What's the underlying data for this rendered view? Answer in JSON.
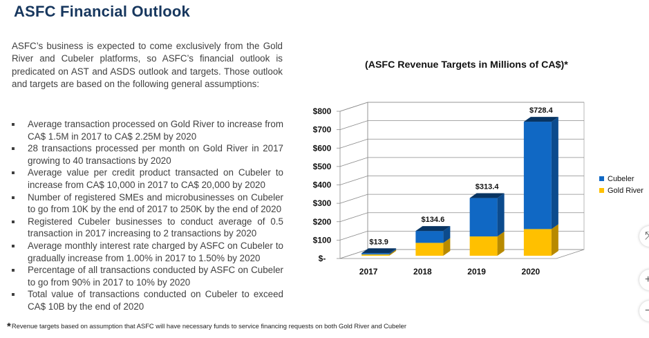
{
  "title": "ASFC Financial Outlook",
  "intro": "ASFC’s business is expected to come exclusively from the Gold River and Cubeler platforms, so ASFC’s financial outlook is predicated on AST and ASDS outlook and targets. Those outlook and targets are based on the following general assumptions:",
  "bullets": [
    "Average transaction processed on Gold River to increase from CA$ 1.5M in 2017 to CA$ 2.25M by 2020",
    "28 transactions processed per month on Gold River in 2017 growing to 40 transactions by 2020",
    "Average value per credit product transacted on Cubeler to increase from CA$ 10,000 in 2017 to CA$ 20,000 by 2020",
    "Number of registered SMEs and microbusinesses on Cubeler to go from 10K by the end of 2017 to 250K by the end of 2020",
    "Registered Cubeler businesses to conduct average of 0.5 transaction in 2017 increasing to 2 transactions by 2020",
    "Average monthly interest rate charged by ASFC on Cubeler to gradually increase from 1.00% in 2017 to 1.50% by 2020",
    "Percentage of all transactions conducted by ASFC on Cubeler to go from 90% in 2017 to 10% by 2020",
    "Total value of transactions conducted on Cubeler to exceed CA$ 10B by the end of 2020"
  ],
  "footnote": {
    "star": "*",
    "text": "Revenue targets based on assumption that ASFC will have necessary funds to service financing requests on both Gold River and Cubeler"
  },
  "side_controls": {
    "fit": "⤧",
    "zoom_in": "+",
    "zoom_out": "−"
  },
  "colors": {
    "cubeler": "#1068c4",
    "gold_river": "#ffc000",
    "title": "#17375e"
  },
  "chart_data": {
    "type": "bar",
    "stacked": true,
    "three_d": true,
    "title": "(ASFC Revenue Targets in Millions of CA$)*",
    "categories": [
      "2017",
      "2018",
      "2019",
      "2020"
    ],
    "series": [
      {
        "name": "Gold River",
        "values": [
          7,
          70,
          105,
          145
        ],
        "color": "#ffc000"
      },
      {
        "name": "Cubeler",
        "values": [
          6.9,
          64.6,
          208.4,
          583.4
        ],
        "color": "#1068c4"
      }
    ],
    "totals": [
      13.9,
      134.6,
      313.4,
      728.4
    ],
    "total_labels": [
      "$13.9",
      "$134.6",
      "$313.4",
      "$728.4"
    ],
    "ylim": [
      0,
      800
    ],
    "yticks": [
      0,
      100,
      200,
      300,
      400,
      500,
      600,
      700,
      800
    ],
    "ytick_labels": [
      "$-",
      "$100",
      "$200",
      "$300",
      "$400",
      "$500",
      "$600",
      "$700",
      "$800"
    ],
    "legend": [
      "Cubeler",
      "Gold River"
    ],
    "legend_position": "right",
    "grid": true
  }
}
